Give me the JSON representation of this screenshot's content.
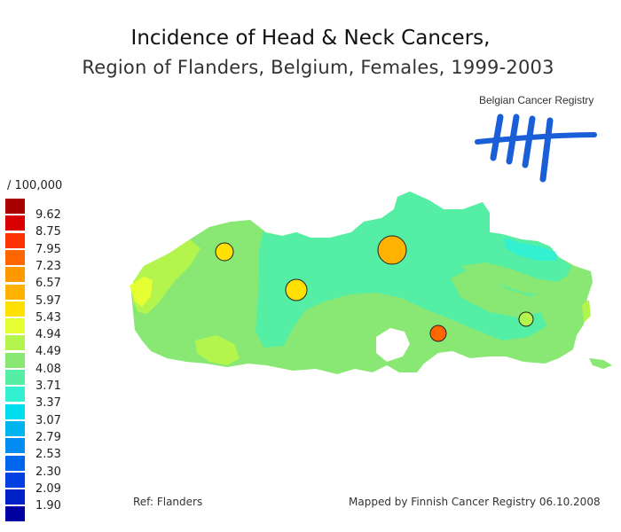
{
  "title": {
    "line1": "Incidence of Head & Neck Cancers,",
    "line2": "Region of Flanders, Belgium, Females, 1999-2003"
  },
  "logo": {
    "text": "Belgian Cancer Registry"
  },
  "legend": {
    "unit": "/ 100,000",
    "items": [
      {
        "label": "9.62",
        "color": "#a80000"
      },
      {
        "label": "8.75",
        "color": "#d80000"
      },
      {
        "label": "7.95",
        "color": "#ff3300"
      },
      {
        "label": "7.23",
        "color": "#ff6600"
      },
      {
        "label": "6.57",
        "color": "#ff9900"
      },
      {
        "label": "5.97",
        "color": "#ffb300"
      },
      {
        "label": "5.43",
        "color": "#ffe000"
      },
      {
        "label": "4.94",
        "color": "#e6ff33"
      },
      {
        "label": "4.49",
        "color": "#b3f54d"
      },
      {
        "label": "4.08",
        "color": "#88e873"
      },
      {
        "label": "3.71",
        "color": "#55eea5"
      },
      {
        "label": "3.37",
        "color": "#33f0d0"
      },
      {
        "label": "3.07",
        "color": "#00ddee"
      },
      {
        "label": "2.79",
        "color": "#00b4f0"
      },
      {
        "label": "2.53",
        "color": "#008cf0"
      },
      {
        "label": "2.30",
        "color": "#0066ee"
      },
      {
        "label": "2.09",
        "color": "#0040e0"
      },
      {
        "label": "1.90",
        "color": "#0020c8"
      },
      {
        "label": "",
        "color": "#0000a0"
      }
    ]
  },
  "map": {
    "base_color": "#88e873",
    "band_color": "#55eea5",
    "circles": [
      {
        "name": "marker-1",
        "color": "#ffe000"
      },
      {
        "name": "marker-2",
        "color": "#ffb300"
      },
      {
        "name": "marker-3",
        "color": "#ffe000"
      },
      {
        "name": "marker-4",
        "color": "#ff6600"
      },
      {
        "name": "marker-5",
        "color": "#b3f54d"
      }
    ]
  },
  "footer": {
    "ref": "Ref: Flanders",
    "credit": "Mapped by Finnish Cancer Registry 06.10.2008"
  }
}
